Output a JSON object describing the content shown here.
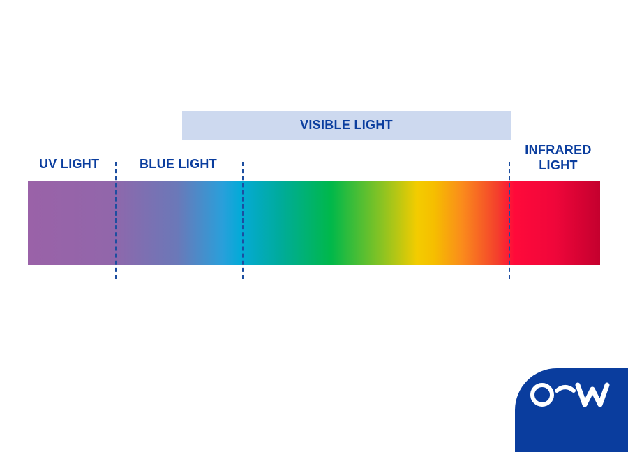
{
  "diagram": {
    "visible_label": "VISIBLE LIGHT",
    "uv_label": "UV LIGHT",
    "blue_label": "BLUE LIGHT",
    "infrared_label_line1": "INFRARED",
    "infrared_label_line2": "LIGHT"
  },
  "colors": {
    "label": "#0a3d9e",
    "visible_band": "#cdd9ef",
    "logo_background": "#0a3d9e"
  },
  "logo": {
    "icon": "brand-logo-icon"
  }
}
